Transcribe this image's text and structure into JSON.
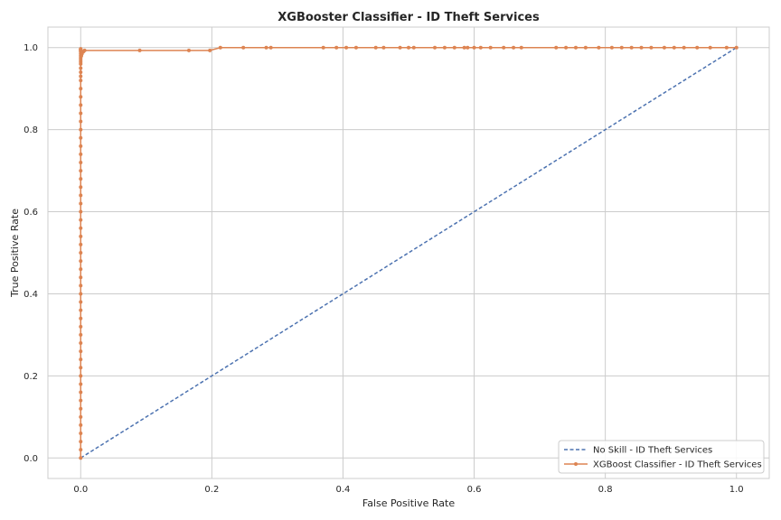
{
  "chart_data": {
    "type": "line",
    "title": "XGBooster Classifier - ID Theft Services",
    "xlabel": "False Positive Rate",
    "ylabel": "True Positive Rate",
    "xlim": [
      -0.05,
      1.05
    ],
    "ylim": [
      -0.05,
      1.05
    ],
    "xticks": [
      0.0,
      0.2,
      0.4,
      0.6,
      0.8,
      1.0
    ],
    "yticks": [
      0.0,
      0.2,
      0.4,
      0.6,
      0.8,
      1.0
    ],
    "xtick_labels": [
      "0.0",
      "0.2",
      "0.4",
      "0.6",
      "0.8",
      "1.0"
    ],
    "ytick_labels": [
      "0.0",
      "0.2",
      "0.4",
      "0.6",
      "0.8",
      "1.0"
    ],
    "grid": true,
    "legend_position": "bottom-right",
    "series": [
      {
        "name": "No Skill - ID Theft Services",
        "style": "dashed",
        "marker": "none",
        "color": "#4c72b0",
        "x": [
          0.0,
          1.0
        ],
        "y": [
          0.0,
          1.0
        ]
      },
      {
        "name": "XGBoost Classifier - ID Theft Services",
        "style": "solid",
        "marker": "circle",
        "color": "#dd8452",
        "x": [
          0.0,
          0.0,
          0.0,
          0.0,
          0.0,
          0.0,
          0.0,
          0.0,
          0.0,
          0.0,
          0.0,
          0.0,
          0.0,
          0.0,
          0.0,
          0.0,
          0.0,
          0.0,
          0.0,
          0.0,
          0.0,
          0.0,
          0.0,
          0.0,
          0.0,
          0.0,
          0.0,
          0.0,
          0.0,
          0.0,
          0.0,
          0.0,
          0.0,
          0.0,
          0.0,
          0.0,
          0.0,
          0.0,
          0.0,
          0.0,
          0.0,
          0.0,
          0.0,
          0.0,
          0.0,
          0.0,
          0.0,
          0.0,
          0.0,
          0.0,
          0.0,
          0.0,
          0.0,
          0.0,
          0.0,
          0.0,
          0.0,
          0.0,
          0.0,
          0.0,
          0.0,
          0.0,
          0.001,
          0.002,
          0.004,
          0.006,
          0.09,
          0.165,
          0.197,
          0.213,
          0.248,
          0.283,
          0.29,
          0.37,
          0.39,
          0.405,
          0.42,
          0.45,
          0.462,
          0.487,
          0.5,
          0.508,
          0.54,
          0.555,
          0.57,
          0.585,
          0.59,
          0.6,
          0.61,
          0.625,
          0.645,
          0.66,
          0.672,
          0.725,
          0.74,
          0.755,
          0.77,
          0.79,
          0.81,
          0.825,
          0.84,
          0.855,
          0.87,
          0.89,
          0.905,
          0.92,
          0.94,
          0.96,
          0.985,
          1.0
        ],
        "y": [
          0.0,
          0.02,
          0.04,
          0.06,
          0.08,
          0.1,
          0.12,
          0.14,
          0.16,
          0.18,
          0.2,
          0.22,
          0.24,
          0.26,
          0.28,
          0.3,
          0.32,
          0.34,
          0.36,
          0.38,
          0.4,
          0.42,
          0.44,
          0.46,
          0.48,
          0.5,
          0.52,
          0.54,
          0.56,
          0.58,
          0.6,
          0.62,
          0.64,
          0.66,
          0.68,
          0.7,
          0.72,
          0.74,
          0.76,
          0.78,
          0.8,
          0.82,
          0.84,
          0.86,
          0.88,
          0.9,
          0.92,
          0.93,
          0.94,
          0.95,
          0.96,
          0.965,
          0.97,
          0.975,
          0.98,
          0.985,
          0.99,
          0.992,
          0.994,
          0.995,
          0.996,
          0.997,
          0.98,
          0.985,
          0.99,
          0.993,
          0.993,
          0.993,
          0.993,
          1.0,
          1.0,
          1.0,
          1.0,
          1.0,
          1.0,
          1.0,
          1.0,
          1.0,
          1.0,
          1.0,
          1.0,
          1.0,
          1.0,
          1.0,
          1.0,
          1.0,
          1.0,
          1.0,
          1.0,
          1.0,
          1.0,
          1.0,
          1.0,
          1.0,
          1.0,
          1.0,
          1.0,
          1.0,
          1.0,
          1.0,
          1.0,
          1.0,
          1.0,
          1.0,
          1.0,
          1.0,
          1.0,
          1.0,
          1.0,
          1.0
        ]
      }
    ]
  }
}
